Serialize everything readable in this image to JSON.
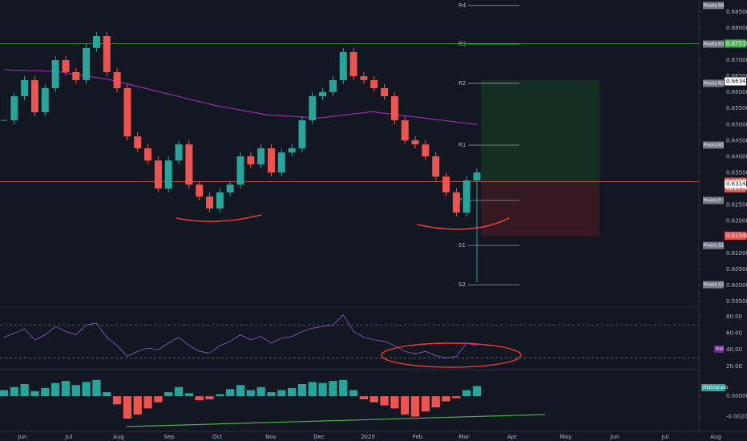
{
  "chart_data": {
    "type": "candlestick",
    "x_labels": [
      "Jun",
      "Jul",
      "Aug",
      "Sep",
      "Oct",
      "Nov",
      "Dec",
      "2020",
      "Feb",
      "Mar",
      "Apr",
      "May",
      "Jun",
      "Jul",
      "Aug"
    ],
    "up_color": "#26a69a",
    "down_color": "#ef5350",
    "closes": [
      0.6513,
      0.6588,
      0.6638,
      0.6538,
      0.6613,
      0.67,
      0.6663,
      0.6638,
      0.6738,
      0.6775,
      0.6663,
      0.6613,
      0.6463,
      0.6426,
      0.6388,
      0.6301,
      0.6388,
      0.6438,
      0.6313,
      0.6276,
      0.6239,
      0.6289,
      0.6313,
      0.6401,
      0.6376,
      0.6426,
      0.6351,
      0.6413,
      0.6426,
      0.6513,
      0.6588,
      0.6601,
      0.6638,
      0.6725,
      0.665,
      0.6638,
      0.6613,
      0.6588,
      0.6513,
      0.6451,
      0.6438,
      0.6401,
      0.6338,
      0.6289,
      0.6226,
      0.6326,
      0.6351
    ],
    "ema": {
      "color": "#9c27b0",
      "values": [
        0.667,
        0.6665,
        0.664,
        0.66,
        0.656,
        0.653,
        0.652,
        0.654,
        0.652,
        0.65
      ]
    },
    "ylim": [
      0.5935,
      0.6887
    ],
    "yticks": [
      {
        "value": 0.595,
        "label": "0.59500"
      },
      {
        "value": 0.6,
        "label": "0.60000"
      },
      {
        "value": 0.605,
        "label": "0.60500"
      },
      {
        "value": 0.61,
        "label": "0.61000"
      },
      {
        "value": 0.615,
        "label": "0.61500"
      },
      {
        "value": 0.62,
        "label": "0.62000"
      },
      {
        "value": 0.625,
        "label": "0.62500"
      },
      {
        "value": 0.63,
        "label": "0.63000"
      },
      {
        "value": 0.635,
        "label": "0.63500"
      },
      {
        "value": 0.64,
        "label": "0.64000"
      },
      {
        "value": 0.645,
        "label": "0.64500"
      },
      {
        "value": 0.65,
        "label": "0.65000"
      },
      {
        "value": 0.655,
        "label": "0.65500"
      },
      {
        "value": 0.66,
        "label": "0.66000"
      },
      {
        "value": 0.665,
        "label": "0.66500"
      },
      {
        "value": 0.67,
        "label": "0.67000"
      },
      {
        "value": 0.675,
        "label": "0.67500"
      },
      {
        "value": 0.68,
        "label": "0.68000"
      },
      {
        "value": 0.685,
        "label": "0.68500"
      }
    ],
    "levels": [
      {
        "value": 0.67515,
        "label": "0.67515",
        "color": "#4caf50"
      },
      {
        "value": 0.63225,
        "label": "0.63225",
        "color": "#ef5350"
      }
    ],
    "price_tags": [
      {
        "value": 0.6634,
        "label": "0.66340",
        "color": "#ffffff"
      },
      {
        "value": 0.63145,
        "label": "0.63145",
        "color": "#ffffff"
      },
      {
        "value": 0.61545,
        "label": "0.61545",
        "color": "#ef5350"
      }
    ],
    "timer": "19:20:34",
    "pivots": [
      {
        "name": "R4",
        "label": "Pivots R4",
        "value": 0.687
      },
      {
        "name": "R3",
        "label": "Pivots R3",
        "value": 0.675
      },
      {
        "name": "R2",
        "label": "Pivots R2",
        "value": 0.6628
      },
      {
        "name": "R1",
        "label": "Pivots R1",
        "value": 0.6436
      },
      {
        "name": "P",
        "label": "Pivots P",
        "value": 0.6264
      },
      {
        "name": "S1",
        "label": "Pivots S1",
        "value": 0.6124
      },
      {
        "name": "S2",
        "label": "Pivots S2",
        "value": 0.6002
      }
    ],
    "rsi": {
      "name": "RSI",
      "color": "#7e57c2",
      "ylim": [
        16,
        89.5
      ],
      "yticks": [
        {
          "value": 20,
          "label": "20.00"
        },
        {
          "value": 40,
          "label": "40.00"
        },
        {
          "value": 60,
          "label": "60.00"
        },
        {
          "value": 80,
          "label": "80.00"
        }
      ],
      "bands": [
        70,
        30
      ],
      "values": [
        55,
        60,
        65,
        52,
        58,
        68,
        62,
        58,
        70,
        72,
        55,
        45,
        32,
        38,
        42,
        40,
        48,
        55,
        45,
        38,
        36,
        45,
        50,
        58,
        52,
        56,
        48,
        54,
        56,
        62,
        66,
        68,
        70,
        82,
        62,
        55,
        52,
        50,
        45,
        38,
        35,
        38,
        33,
        30,
        32,
        48,
        45
      ]
    },
    "histogram": {
      "name": "Histogram",
      "ylim": [
        -0.00346,
        0.00254
      ],
      "yticks": [
        {
          "value": 0,
          "label": "0.00000"
        },
        {
          "value": -0.002,
          "label": "-0.00200"
        }
      ],
      "values": [
        0.0006,
        0.0009,
        0.0012,
        0.0005,
        0.0008,
        0.0013,
        0.0015,
        0.0011,
        0.0014,
        0.0016,
        0.0004,
        -0.0008,
        -0.0022,
        -0.0018,
        -0.0012,
        -0.0006,
        0.0004,
        0.0009,
        0.0003,
        -0.0004,
        -0.0003,
        0.0002,
        0.0007,
        0.0011,
        0.0006,
        0.0009,
        0.0004,
        0.0006,
        0.0008,
        0.0012,
        0.0014,
        0.0013,
        0.0015,
        0.0016,
        0.0006,
        -0.0003,
        -0.0006,
        -0.0009,
        -0.0012,
        -0.0018,
        -0.002,
        -0.0015,
        -0.0011,
        -0.0005,
        -0.0002,
        0.0006,
        0.001
      ]
    }
  }
}
